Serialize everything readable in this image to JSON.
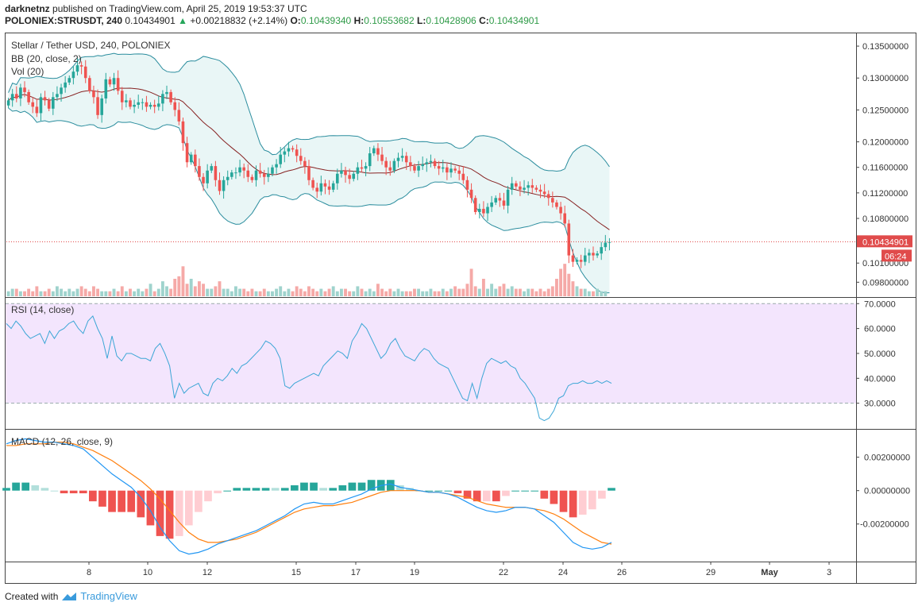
{
  "header": {
    "author": "darknetnz",
    "published": "published on TradingView.com, April 25, 2019 19:53:37 UTC",
    "symbol": "POLONIEX:STRUSDT, 240",
    "last": "0.10434901",
    "change_arrow": "▲",
    "change": "+0.00218832 (+2.14%)",
    "o_label": "O:",
    "o": "0.10439340",
    "h_label": "H:",
    "h": "0.10553682",
    "l_label": "L:",
    "l": "0.10428906",
    "c_label": "C:",
    "c": "0.10434901"
  },
  "legend": {
    "title": "Stellar / Tether USD, 240, POLONIEX",
    "bb": "BB (20, close, 2)",
    "vol": "Vol (20)",
    "rsi": "RSI (14, close)",
    "macd": "MACD (12, 26, close, 9)"
  },
  "footer": {
    "created": "Created with",
    "brand": "TradingView"
  },
  "colors": {
    "up": "#26a69a",
    "down": "#ef5350",
    "basis": "#872323",
    "band": "#2b8d9e",
    "band_fill": "#e9f6f6",
    "rsi": "#3ca6d6",
    "rsi_bg": "#f3e5fd",
    "macd": "#2196f3",
    "signal": "#ff7f0e",
    "price_line": "#e04040"
  },
  "chart_data": {
    "type": "candlestick",
    "price_axis": {
      "ticks": [
        "0.13500000",
        "0.13000000",
        "0.12500000",
        "0.12000000",
        "0.11600000",
        "0.11200000",
        "0.10800000",
        "0.10100000",
        "0.09800000"
      ],
      "ylim": [
        0.0958,
        0.137
      ]
    },
    "rsi_axis": {
      "ticks": [
        "70.0000",
        "60.0000",
        "50.0000",
        "40.0000",
        "30.0000"
      ],
      "ylim": [
        20,
        72
      ],
      "band": [
        30,
        70
      ]
    },
    "macd_axis": {
      "ticks": [
        "0.00200000",
        "0.00000000",
        "-0.00200000"
      ],
      "ylim": [
        -0.0042,
        0.0036
      ]
    },
    "x_ticks": [
      "8",
      "10",
      "12",
      "15",
      "17",
      "19",
      "22",
      "24",
      "26",
      "29",
      "May",
      "3"
    ],
    "last_price_label": "0.10434901",
    "countdown_label": "06:24",
    "last_price": 0.10434901,
    "closes": [
      0.1265,
      0.1275,
      0.1268,
      0.1285,
      0.1278,
      0.1262,
      0.1255,
      0.1245,
      0.127,
      0.1265,
      0.1252,
      0.127,
      0.1275,
      0.1285,
      0.1293,
      0.13,
      0.131,
      0.132,
      0.1318,
      0.13,
      0.128,
      0.127,
      0.1242,
      0.1268,
      0.1298,
      0.129,
      0.13,
      0.128,
      0.1262,
      0.1265,
      0.1255,
      0.1258,
      0.1262,
      0.1262,
      0.1255,
      0.1258,
      0.1255,
      0.126,
      0.1275,
      0.1278,
      0.1262,
      0.125,
      0.1232,
      0.1198,
      0.1168,
      0.118,
      0.1162,
      0.1145,
      0.1135,
      0.1155,
      0.1162,
      0.114,
      0.1123,
      0.114,
      0.1145,
      0.1152,
      0.1152,
      0.116,
      0.1155,
      0.1145,
      0.114,
      0.1155,
      0.115,
      0.1145,
      0.115,
      0.116,
      0.1165,
      0.118,
      0.1185,
      0.119,
      0.1188,
      0.1178,
      0.117,
      0.1162,
      0.114,
      0.1128,
      0.1122,
      0.1135,
      0.113,
      0.1125,
      0.1135,
      0.115,
      0.1155,
      0.1148,
      0.1142,
      0.115,
      0.116,
      0.1158,
      0.1162,
      0.1182,
      0.119,
      0.118,
      0.117,
      0.116,
      0.1155,
      0.117,
      0.1175,
      0.1178,
      0.1168,
      0.1162,
      0.1155,
      0.1162,
      0.1165,
      0.1168,
      0.117,
      0.1162,
      0.1158,
      0.116,
      0.1152,
      0.1158,
      0.1155,
      0.115,
      0.114,
      0.1125,
      0.1112,
      0.109,
      0.1095,
      0.1088,
      0.1098,
      0.1105,
      0.1112,
      0.1108,
      0.11,
      0.1125,
      0.1135,
      0.113,
      0.1125,
      0.1128,
      0.1132,
      0.1128,
      0.1125,
      0.1122,
      0.1118,
      0.1112,
      0.1105,
      0.1098,
      0.1088,
      0.1072,
      0.1022,
      0.1012,
      0.1015,
      0.1012,
      0.1022,
      0.1026,
      0.1022,
      0.1025,
      0.1035,
      0.1042,
      0.1043
    ],
    "volumes": [
      2,
      3,
      3,
      2,
      2,
      3,
      2,
      4,
      2,
      2,
      3,
      2,
      4,
      3,
      2,
      3,
      2,
      3,
      4,
      3,
      2,
      4,
      3,
      2,
      2,
      2,
      3,
      2,
      4,
      2,
      3,
      2,
      3,
      2,
      3,
      5,
      2,
      3,
      6,
      4,
      3,
      7,
      8,
      12,
      5,
      7,
      4,
      6,
      5,
      3,
      3,
      4,
      6,
      3,
      3,
      2,
      4,
      3,
      3,
      2,
      3,
      2,
      2,
      3,
      2,
      2,
      3,
      4,
      2,
      3,
      2,
      4,
      3,
      2,
      4,
      3,
      2,
      3,
      2,
      3,
      4,
      2,
      3,
      3,
      2,
      2,
      4,
      3,
      2,
      3,
      2,
      5,
      3,
      2,
      3,
      2,
      3,
      2,
      2,
      2,
      3,
      3,
      2,
      2,
      3,
      2,
      2,
      3,
      2,
      3,
      4,
      3,
      3,
      5,
      11,
      4,
      3,
      7,
      3,
      5,
      3,
      4,
      5,
      3,
      4,
      3,
      3,
      2,
      3,
      3,
      2,
      3,
      2,
      3,
      4,
      7,
      11,
      13,
      9,
      6,
      4,
      3,
      3,
      2,
      2,
      3,
      2,
      2
    ],
    "rsi": [
      62,
      60,
      63,
      61,
      58,
      56,
      57,
      58,
      54,
      59,
      56,
      59,
      60,
      62,
      63,
      60,
      58,
      63,
      65,
      60,
      56,
      48,
      57,
      49,
      47,
      50,
      50,
      49,
      48,
      48,
      47,
      52,
      54,
      50,
      45,
      32,
      38,
      34,
      36,
      37,
      38,
      34,
      33,
      38,
      40,
      39,
      41,
      44,
      42,
      45,
      46,
      48,
      50,
      52,
      55,
      54,
      52,
      48,
      37,
      36,
      38,
      39,
      40,
      41,
      42,
      41,
      45,
      47,
      49,
      51,
      50,
      48,
      55,
      58,
      62,
      60,
      56,
      52,
      48,
      50,
      54,
      56,
      52,
      49,
      48,
      47,
      50,
      52,
      51,
      48,
      46,
      45,
      44,
      40,
      36,
      32,
      31,
      38,
      32,
      40,
      46,
      48,
      47,
      46,
      47,
      45,
      44,
      40,
      38,
      35,
      32,
      24,
      23,
      24,
      27,
      32,
      33,
      37,
      38,
      38,
      39,
      38,
      38,
      39,
      38,
      39,
      38
    ],
    "macd": [
      0.0028,
      0.003,
      0.0031,
      0.003,
      0.0029,
      0.0029,
      0.0028,
      0.0027,
      0.0025,
      0.002,
      0.0015,
      0.001,
      0.0006,
      0.0002,
      -0.0004,
      -0.0012,
      -0.0022,
      -0.003,
      -0.0036,
      -0.0038,
      -0.0037,
      -0.0035,
      -0.0032,
      -0.003,
      -0.0028,
      -0.0026,
      -0.0024,
      -0.0021,
      -0.0018,
      -0.0015,
      -0.0011,
      -0.0008,
      -0.0007,
      -0.0008,
      -0.0008,
      -0.0006,
      -0.0004,
      -0.0002,
      0.0001,
      0.0003,
      0.0004,
      0.0002,
      0.0001,
      0.0,
      -0.0001,
      -0.0001,
      -0.0002,
      -0.0004,
      -0.0007,
      -0.001,
      -0.0012,
      -0.0013,
      -0.0012,
      -0.001,
      -0.001,
      -0.0011,
      -0.0015,
      -0.0019,
      -0.0025,
      -0.0031,
      -0.0034,
      -0.0035,
      -0.0034,
      -0.0031
    ],
    "signal": [
      0.0027,
      0.0027,
      0.0028,
      0.0028,
      0.0028,
      0.0029,
      0.0029,
      0.0028,
      0.0026,
      0.0024,
      0.0021,
      0.0018,
      0.0014,
      0.001,
      0.0006,
      0.0001,
      -0.0005,
      -0.0012,
      -0.0019,
      -0.0025,
      -0.0029,
      -0.0031,
      -0.0031,
      -0.003,
      -0.0029,
      -0.0027,
      -0.0025,
      -0.0022,
      -0.0019,
      -0.0016,
      -0.0013,
      -0.0011,
      -0.001,
      -0.0009,
      -0.0009,
      -0.0008,
      -0.0007,
      -0.0005,
      -0.0003,
      -0.0001,
      0.0,
      0.0,
      0.0,
      0.0,
      -0.0001,
      -0.0001,
      -0.0002,
      -0.0003,
      -0.0004,
      -0.0006,
      -0.0008,
      -0.0009,
      -0.001,
      -0.001,
      -0.001,
      -0.0011,
      -0.0012,
      -0.0014,
      -0.0017,
      -0.0021,
      -0.0025,
      -0.0028,
      -0.0031,
      -0.0032
    ]
  }
}
